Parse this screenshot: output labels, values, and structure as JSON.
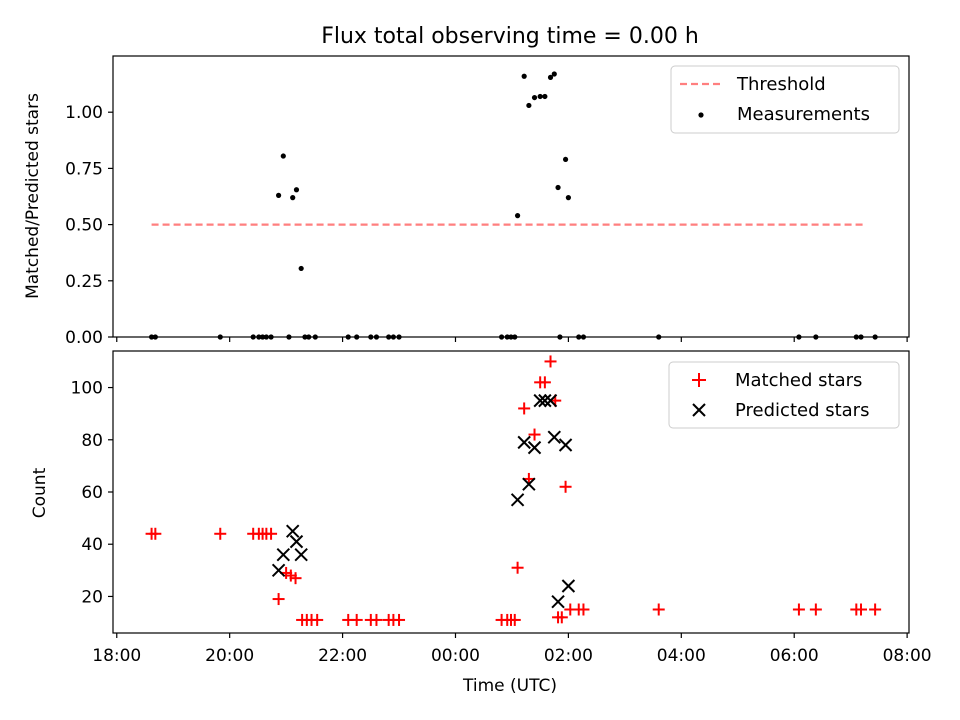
{
  "chart_data": [
    {
      "type": "scatter",
      "title": "Flux total observing time = 0.00 h",
      "xlabel": "",
      "ylabel": "Matched/Predicted stars",
      "xlim": [
        "17:56",
        "08:02"
      ],
      "ylim": [
        0,
        1.25
      ],
      "x_ticks": [
        "18:00",
        "20:00",
        "22:00",
        "00:00",
        "02:00",
        "04:00",
        "06:00",
        "08:00"
      ],
      "y_ticks": [
        "0.00",
        "0.25",
        "0.50",
        "0.75",
        "1.00"
      ],
      "y_tick_values": [
        0,
        0.25,
        0.5,
        0.75,
        1.0
      ],
      "legend_position": "top-right",
      "threshold": {
        "name": "Threshold",
        "x": [
          "18:37",
          "07:16"
        ],
        "value": 0.5,
        "color": "#ff7f7f"
      },
      "measurements": {
        "name": "Measurements",
        "color": "#000000",
        "points": [
          [
            "18:37",
            0
          ],
          [
            "18:41",
            0
          ],
          [
            "19:50",
            0
          ],
          [
            "20:25",
            0
          ],
          [
            "20:31",
            0
          ],
          [
            "20:35",
            0
          ],
          [
            "20:39",
            0
          ],
          [
            "20:44",
            0
          ],
          [
            "21:03",
            0
          ],
          [
            "21:20",
            0
          ],
          [
            "21:24",
            0
          ],
          [
            "21:31",
            0
          ],
          [
            "22:06",
            0
          ],
          [
            "22:15",
            0
          ],
          [
            "22:30",
            0
          ],
          [
            "22:36",
            0
          ],
          [
            "22:49",
            0
          ],
          [
            "22:54",
            0
          ],
          [
            "23:00",
            0
          ],
          [
            "00:49",
            0
          ],
          [
            "00:55",
            0
          ],
          [
            "00:59",
            0
          ],
          [
            "01:03",
            0
          ],
          [
            "01:51",
            0
          ],
          [
            "02:11",
            0
          ],
          [
            "02:16",
            0
          ],
          [
            "03:36",
            0
          ],
          [
            "06:05",
            0
          ],
          [
            "06:23",
            0
          ],
          [
            "07:06",
            0
          ],
          [
            "07:11",
            0
          ],
          [
            "07:26",
            0
          ],
          [
            "20:52",
            0.63
          ],
          [
            "20:57",
            0.805
          ],
          [
            "21:07",
            0.62
          ],
          [
            "21:11",
            0.655
          ],
          [
            "21:16",
            0.305
          ],
          [
            "01:06",
            0.54
          ],
          [
            "01:13",
            1.16
          ],
          [
            "01:18",
            1.03
          ],
          [
            "01:24",
            1.065
          ],
          [
            "01:30",
            1.07
          ],
          [
            "01:35",
            1.07
          ],
          [
            "01:41",
            1.155
          ],
          [
            "01:45",
            1.17
          ],
          [
            "01:49",
            0.665
          ],
          [
            "01:57",
            0.79
          ],
          [
            "02:00",
            0.62
          ]
        ]
      }
    },
    {
      "type": "scatter",
      "title": "",
      "xlabel": "Time (UTC)",
      "ylabel": "Count",
      "xlim": [
        "17:56",
        "08:02"
      ],
      "ylim": [
        6,
        114
      ],
      "x_ticks": [
        "18:00",
        "20:00",
        "22:00",
        "00:00",
        "02:00",
        "04:00",
        "06:00",
        "08:00"
      ],
      "y_ticks": [
        "20",
        "40",
        "60",
        "80",
        "100"
      ],
      "y_tick_values": [
        20,
        40,
        60,
        80,
        100
      ],
      "legend_position": "top-right",
      "series": [
        {
          "name": "Matched stars",
          "marker": "plus",
          "color": "#ff0000",
          "points": [
            [
              "18:37",
              44
            ],
            [
              "18:41",
              44
            ],
            [
              "19:50",
              44
            ],
            [
              "20:25",
              44
            ],
            [
              "20:31",
              44
            ],
            [
              "20:35",
              44
            ],
            [
              "20:39",
              44
            ],
            [
              "20:44",
              44
            ],
            [
              "20:52",
              19
            ],
            [
              "21:00",
              29
            ],
            [
              "21:05",
              28
            ],
            [
              "21:10",
              27
            ],
            [
              "21:17",
              11
            ],
            [
              "21:22",
              11
            ],
            [
              "21:27",
              11
            ],
            [
              "21:33",
              11
            ],
            [
              "22:06",
              11
            ],
            [
              "22:15",
              11
            ],
            [
              "22:30",
              11
            ],
            [
              "22:36",
              11
            ],
            [
              "22:49",
              11
            ],
            [
              "22:54",
              11
            ],
            [
              "23:00",
              11
            ],
            [
              "00:49",
              11
            ],
            [
              "00:55",
              11
            ],
            [
              "00:59",
              11
            ],
            [
              "01:03",
              11
            ],
            [
              "01:06",
              31
            ],
            [
              "01:13",
              92
            ],
            [
              "01:18",
              65
            ],
            [
              "01:24",
              82
            ],
            [
              "01:30",
              102
            ],
            [
              "01:35",
              102
            ],
            [
              "01:41",
              110
            ],
            [
              "01:46",
              95
            ],
            [
              "01:49",
              12
            ],
            [
              "01:53",
              12
            ],
            [
              "01:57",
              62
            ],
            [
              "02:02",
              15
            ],
            [
              "02:11",
              15
            ],
            [
              "02:16",
              15
            ],
            [
              "03:36",
              15
            ],
            [
              "06:05",
              15
            ],
            [
              "06:23",
              15
            ],
            [
              "07:06",
              15
            ],
            [
              "07:11",
              15
            ],
            [
              "07:26",
              15
            ]
          ]
        },
        {
          "name": "Predicted stars",
          "marker": "x",
          "color": "#000000",
          "points": [
            [
              "20:52",
              30
            ],
            [
              "20:57",
              36
            ],
            [
              "21:07",
              45
            ],
            [
              "21:11",
              41
            ],
            [
              "21:16",
              36
            ],
            [
              "01:06",
              57
            ],
            [
              "01:13",
              79
            ],
            [
              "01:18",
              63
            ],
            [
              "01:24",
              77
            ],
            [
              "01:30",
              95
            ],
            [
              "01:35",
              95
            ],
            [
              "01:41",
              95
            ],
            [
              "01:45",
              81
            ],
            [
              "01:49",
              18
            ],
            [
              "01:57",
              78
            ],
            [
              "02:00",
              24
            ]
          ]
        }
      ]
    }
  ]
}
